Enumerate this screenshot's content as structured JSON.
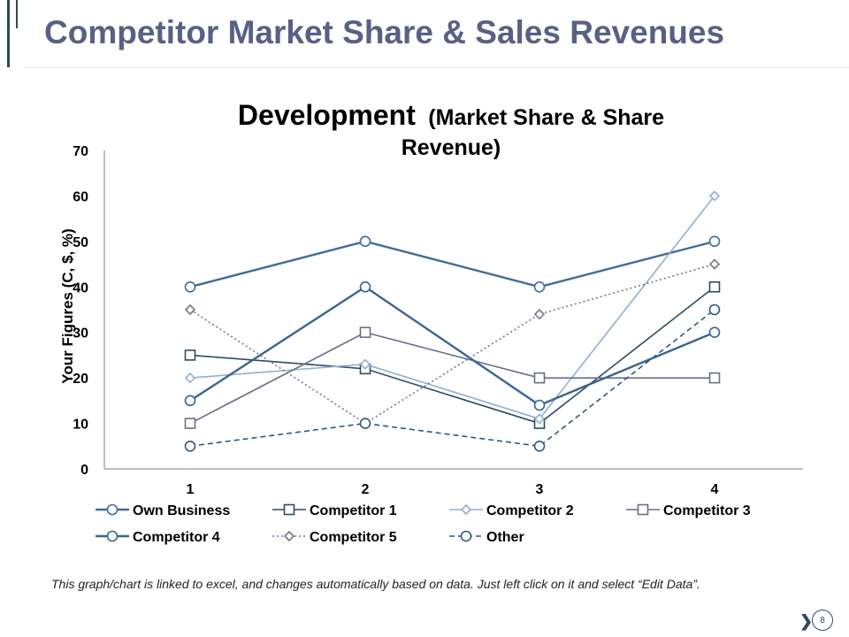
{
  "slide": {
    "title": "Competitor Market Share & Sales Revenues",
    "footnote": "This graph/chart is linked to excel, and changes automatically based on data. Just left click on it and select “Edit Data”.",
    "page_number": "8",
    "nav_icon": "chevron-right-icon"
  },
  "chart_data": {
    "type": "line",
    "title": "Development",
    "subtitle": "(Market Share & Share Revenue)",
    "xlabel": "",
    "ylabel": "Your Figures (C, $, %)",
    "categories": [
      "1",
      "2",
      "3",
      "4"
    ],
    "ylim": [
      0,
      70
    ],
    "yticks": [
      0,
      10,
      20,
      30,
      40,
      50,
      60,
      70
    ],
    "grid": false,
    "legend": "bottom",
    "series": [
      {
        "name": "Own Business",
        "values": [
          40,
          50,
          40,
          50
        ],
        "color": "#3f6d99",
        "marker": "circle",
        "dash": "solid",
        "bold": true
      },
      {
        "name": "Competitor 1",
        "values": [
          25,
          22,
          10,
          40
        ],
        "color": "#2b4d66",
        "marker": "square",
        "dash": "solid",
        "bold": false
      },
      {
        "name": "Competitor 2",
        "values": [
          20,
          23,
          11,
          60
        ],
        "color": "#8fb0d0",
        "marker": "diamond",
        "dash": "solid",
        "bold": false
      },
      {
        "name": "Competitor 3",
        "values": [
          10,
          30,
          20,
          20
        ],
        "color": "#6b6f87",
        "marker": "square",
        "dash": "solid",
        "bold": false
      },
      {
        "name": "Competitor 4",
        "values": [
          15,
          40,
          14,
          30
        ],
        "color": "#3a6591",
        "marker": "circle",
        "dash": "solid",
        "bold": true
      },
      {
        "name": "Competitor 5",
        "values": [
          35,
          10,
          34,
          45
        ],
        "color": "#72758f",
        "marker": "diamond",
        "dash": "dotted",
        "bold": false
      },
      {
        "name": "Other",
        "values": [
          5,
          10,
          5,
          35
        ],
        "color": "#2e5a80",
        "marker": "circle",
        "dash": "dashed",
        "bold": false
      }
    ]
  }
}
